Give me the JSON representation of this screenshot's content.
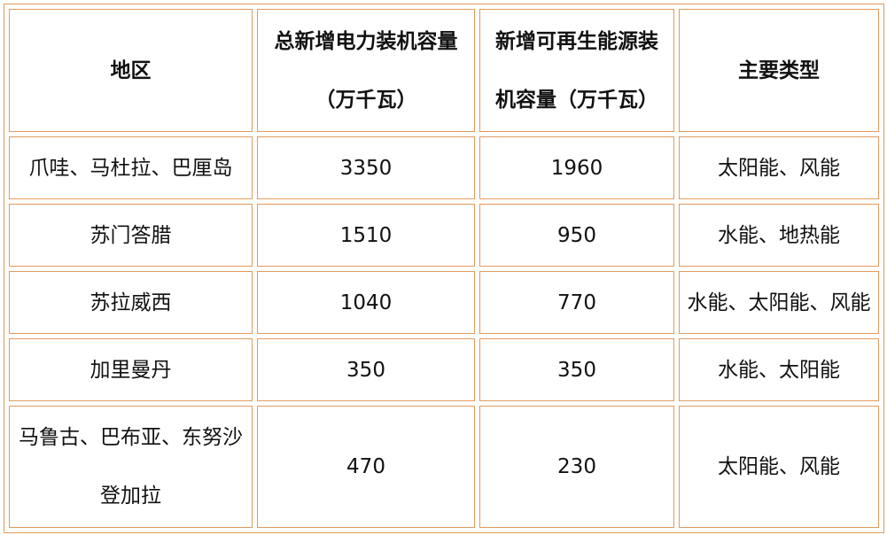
{
  "table": {
    "header": [
      [
        "地区"
      ],
      [
        "总新增电力装机容量",
        "（万千瓦）"
      ],
      [
        "新增可再生能源装",
        "机容量（万千瓦）"
      ],
      [
        "主要类型"
      ]
    ],
    "rows": [
      [
        "爪哇、马杜拉、巴厘岛",
        3350,
        1960,
        "太阳能、风能"
      ],
      [
        "苏门答腊",
        1510,
        950,
        "水能、地热能"
      ],
      [
        "苏拉威西",
        1040,
        770,
        "水能、太阳能、风能"
      ],
      [
        "加里曼丹",
        350,
        350,
        "水能、太阳能"
      ],
      [
        "马鲁古、巴布亚、东努沙登加拉",
        470,
        230,
        "太阳能、风能"
      ]
    ]
  }
}
